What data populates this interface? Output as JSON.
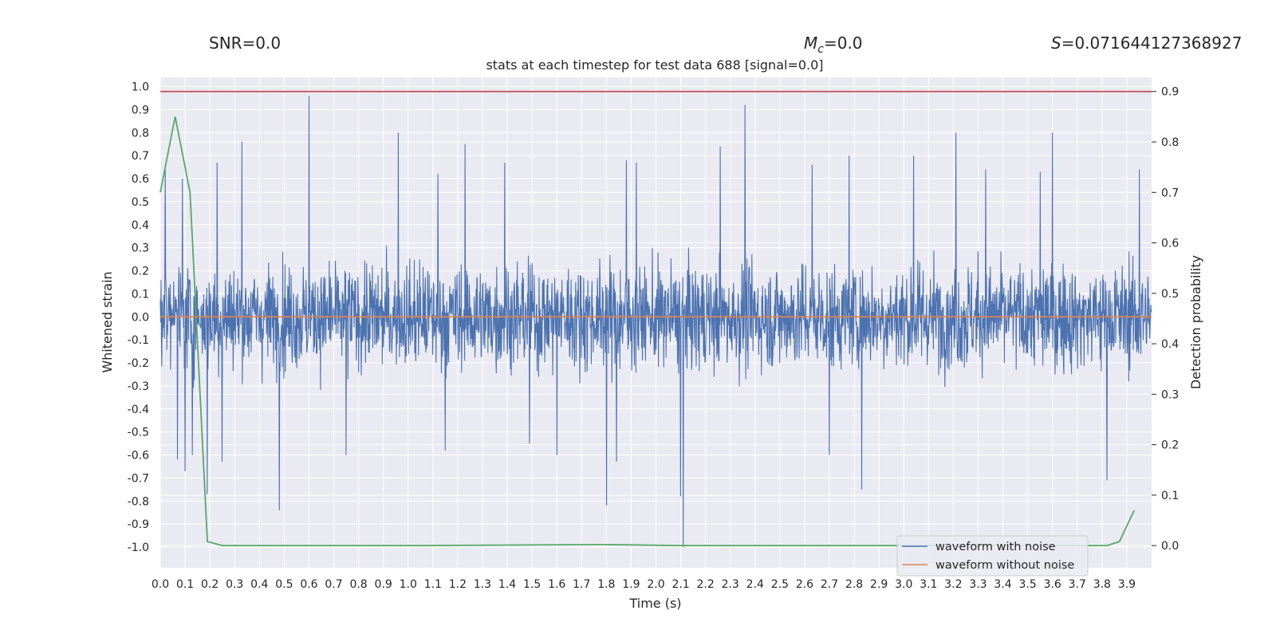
{
  "header": {
    "snr": "SNR=0.0",
    "mc_symbol": "M",
    "mc_sub": "c",
    "mc_value": "=0.0",
    "s_symbol": "S",
    "s_value": "=0.071644127368927"
  },
  "chart_data": {
    "type": "line",
    "title": "stats at each timestep for test data 688 [signal=0.0]",
    "xlabel": "Time (s)",
    "ylabel": "Whitened strain",
    "ylabel_right": "Detection probability",
    "xlim": [
      0.0,
      4.0
    ],
    "ylim": [
      -1.09,
      1.04
    ],
    "ylim_right": [
      -0.044,
      0.928
    ],
    "x_ticks": [
      "0.0",
      "0.1",
      "0.2",
      "0.3",
      "0.4",
      "0.5",
      "0.6",
      "0.7",
      "0.8",
      "0.9",
      "1.0",
      "1.1",
      "1.2",
      "1.3",
      "1.4",
      "1.5",
      "1.6",
      "1.7",
      "1.8",
      "1.9",
      "2.0",
      "2.1",
      "2.2",
      "2.3",
      "2.4",
      "2.5",
      "2.6",
      "2.7",
      "2.8",
      "2.9",
      "3.0",
      "3.1",
      "3.2",
      "3.3",
      "3.4",
      "3.5",
      "3.6",
      "3.7",
      "3.8",
      "3.9"
    ],
    "y_ticks": [
      "1.0",
      "0.9",
      "0.8",
      "0.7",
      "0.6",
      "0.5",
      "0.4",
      "0.3",
      "0.2",
      "0.1",
      "0.0",
      "-0.1",
      "-0.2",
      "-0.3",
      "-0.4",
      "-0.5",
      "-0.6",
      "-0.7",
      "-0.8",
      "-0.9",
      "-1.0"
    ],
    "y_ticks_right": [
      "0.9",
      "0.8",
      "0.7",
      "0.6",
      "0.5",
      "0.4",
      "0.3",
      "0.2",
      "0.1",
      "0.0"
    ],
    "series": [
      {
        "name": "waveform with noise",
        "color": "#4c72b0",
        "band": [
          -0.35,
          0.35
        ],
        "spikes": [
          {
            "x": 0.02,
            "y": 0.64
          },
          {
            "x": 0.07,
            "y": -0.62
          },
          {
            "x": 0.09,
            "y": 0.6
          },
          {
            "x": 0.1,
            "y": -0.67
          },
          {
            "x": 0.13,
            "y": -0.6
          },
          {
            "x": 0.19,
            "y": -0.77
          },
          {
            "x": 0.23,
            "y": 0.67
          },
          {
            "x": 0.25,
            "y": -0.63
          },
          {
            "x": 0.33,
            "y": 0.76
          },
          {
            "x": 0.48,
            "y": -0.84
          },
          {
            "x": 0.6,
            "y": 0.96
          },
          {
            "x": 0.75,
            "y": -0.6
          },
          {
            "x": 0.96,
            "y": 0.8
          },
          {
            "x": 1.12,
            "y": 0.62
          },
          {
            "x": 1.15,
            "y": -0.58
          },
          {
            "x": 1.23,
            "y": 0.75
          },
          {
            "x": 1.39,
            "y": 0.67
          },
          {
            "x": 1.49,
            "y": -0.55
          },
          {
            "x": 1.6,
            "y": -0.6
          },
          {
            "x": 1.8,
            "y": -0.82
          },
          {
            "x": 1.84,
            "y": -0.63
          },
          {
            "x": 1.88,
            "y": 0.68
          },
          {
            "x": 1.92,
            "y": 0.67
          },
          {
            "x": 2.1,
            "y": -0.78
          },
          {
            "x": 2.11,
            "y": -1.0
          },
          {
            "x": 2.26,
            "y": 0.74
          },
          {
            "x": 2.36,
            "y": 0.92
          },
          {
            "x": 2.63,
            "y": 0.66
          },
          {
            "x": 2.7,
            "y": -0.6
          },
          {
            "x": 2.78,
            "y": 0.7
          },
          {
            "x": 2.83,
            "y": -0.75
          },
          {
            "x": 3.04,
            "y": 0.7
          },
          {
            "x": 3.21,
            "y": 0.8
          },
          {
            "x": 3.33,
            "y": 0.64
          },
          {
            "x": 3.55,
            "y": 0.63
          },
          {
            "x": 3.6,
            "y": 0.8
          },
          {
            "x": 3.82,
            "y": -0.71
          },
          {
            "x": 3.95,
            "y": 0.64
          }
        ]
      },
      {
        "name": "waveform without noise",
        "color": "#dd8452",
        "points": [
          [
            0.0,
            0.0
          ],
          [
            4.0,
            0.0
          ]
        ]
      },
      {
        "name": "detection probability",
        "axis": "right",
        "color": "#55a868",
        "points": [
          [
            0.0,
            0.7
          ],
          [
            0.06,
            0.85
          ],
          [
            0.12,
            0.7
          ],
          [
            0.19,
            0.008
          ],
          [
            0.25,
            0.0
          ],
          [
            1.0,
            0.0
          ],
          [
            1.8,
            0.002
          ],
          [
            2.11,
            0.0
          ],
          [
            3.0,
            0.0
          ],
          [
            3.82,
            0.0
          ],
          [
            3.87,
            0.008
          ],
          [
            3.93,
            0.07
          ]
        ]
      },
      {
        "name": "threshold",
        "axis": "right",
        "color": "#c44e52",
        "points": [
          [
            0.0,
            0.9
          ],
          [
            4.0,
            0.9
          ]
        ]
      }
    ],
    "legend": {
      "position": "lower right",
      "entries": [
        "waveform with noise",
        "waveform without noise"
      ]
    },
    "background": "#eaeaf2",
    "grid": true
  }
}
